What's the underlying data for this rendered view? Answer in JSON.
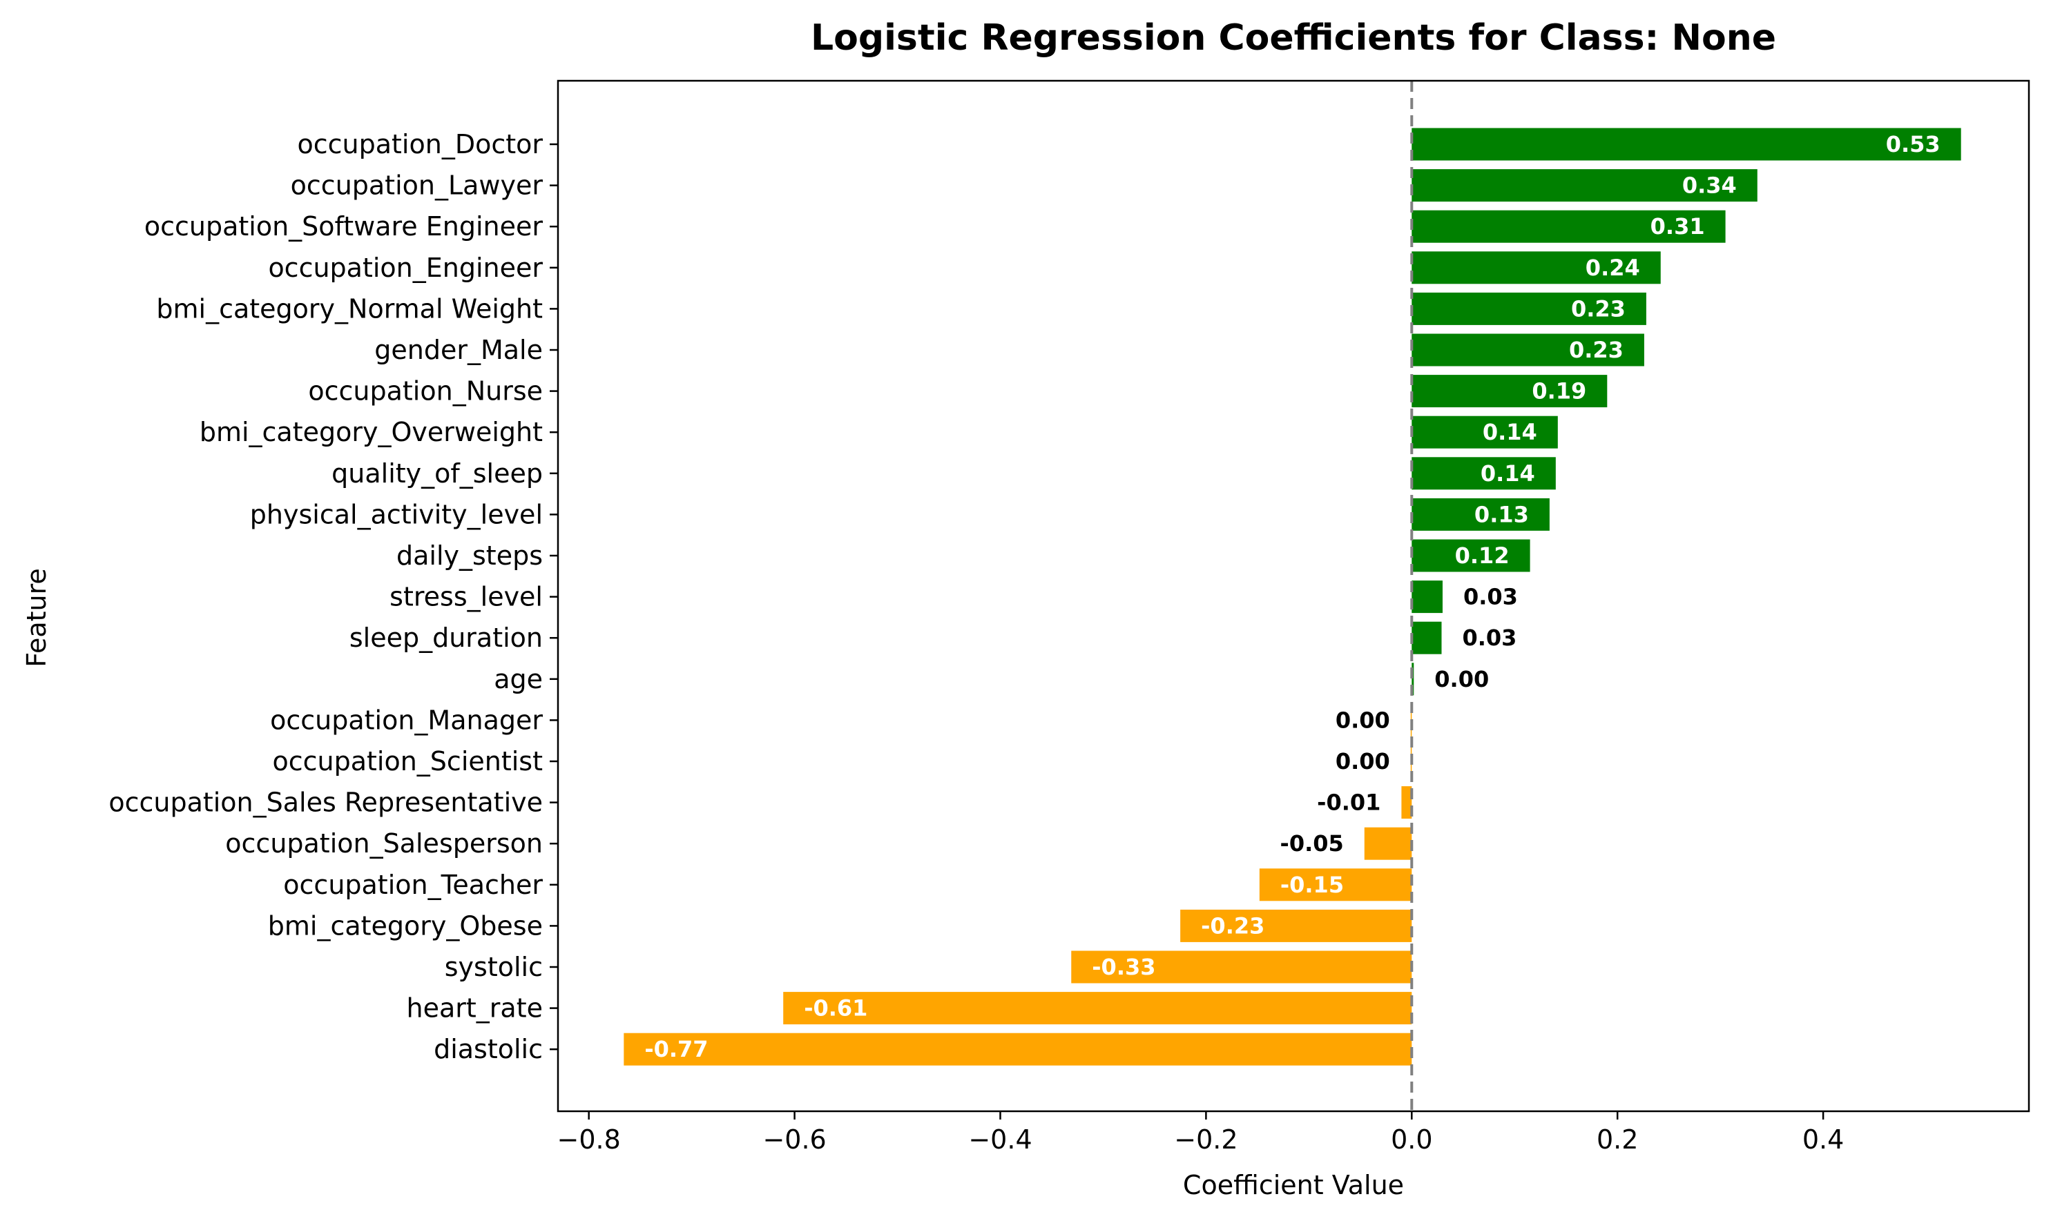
{
  "chart_data": {
    "type": "bar",
    "orientation": "horizontal",
    "title": "Logistic Regression Coefficients for Class: None",
    "xlabel": "Coefficient Value",
    "ylabel": "Feature",
    "xlim": [
      -0.83,
      0.6
    ],
    "xticks": [
      -0.8,
      -0.6,
      -0.4,
      -0.2,
      0.0,
      0.2,
      0.4
    ],
    "xtick_labels": [
      "−0.8",
      "−0.6",
      "−0.4",
      "−0.2",
      "0.0",
      "0.2",
      "0.4"
    ],
    "grid": false,
    "zero_line": "dashed",
    "colors": {
      "positive": "#008000",
      "negative": "#ffa500",
      "zero_line": "#808080"
    },
    "categories": [
      "occupation_Doctor",
      "occupation_Lawyer",
      "occupation_Software Engineer",
      "occupation_Engineer",
      "bmi_category_Normal Weight",
      "gender_Male",
      "occupation_Nurse",
      "bmi_category_Overweight",
      "quality_of_sleep",
      "physical_activity_level",
      "daily_steps",
      "stress_level",
      "sleep_duration",
      "age",
      "occupation_Manager",
      "occupation_Scientist",
      "occupation_Sales Representative",
      "occupation_Salesperson",
      "occupation_Teacher",
      "bmi_category_Obese",
      "systolic",
      "heart_rate",
      "diastolic"
    ],
    "values": [
      0.534,
      0.336,
      0.305,
      0.242,
      0.228,
      0.226,
      0.19,
      0.142,
      0.14,
      0.134,
      0.115,
      0.03,
      0.029,
      0.002,
      -0.001,
      -0.001,
      -0.01,
      -0.046,
      -0.148,
      -0.225,
      -0.331,
      -0.611,
      -0.766
    ],
    "data_labels": [
      "0.53",
      "0.34",
      "0.31",
      "0.24",
      "0.23",
      "0.23",
      "0.19",
      "0.14",
      "0.14",
      "0.13",
      "0.12",
      "0.03",
      "0.03",
      "0.00",
      "0.00",
      "0.00",
      "-0.01",
      "-0.05",
      "-0.15",
      "-0.23",
      "-0.33",
      "-0.61",
      "-0.77"
    ]
  }
}
